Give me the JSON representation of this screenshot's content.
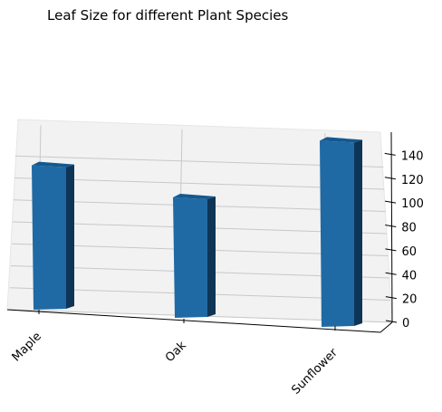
{
  "chart_data": {
    "type": "bar",
    "title": "Leaf Size for different Plant Species",
    "categories": [
      "Maple",
      "Oak",
      "Sunflower"
    ],
    "values": [
      120,
      100,
      155
    ],
    "zlim": [
      0,
      160
    ],
    "z_ticks": [
      0,
      20,
      40,
      60,
      80,
      100,
      120,
      140
    ],
    "grid": true,
    "projection": "3d",
    "bar_color": "#1f6aa5"
  }
}
